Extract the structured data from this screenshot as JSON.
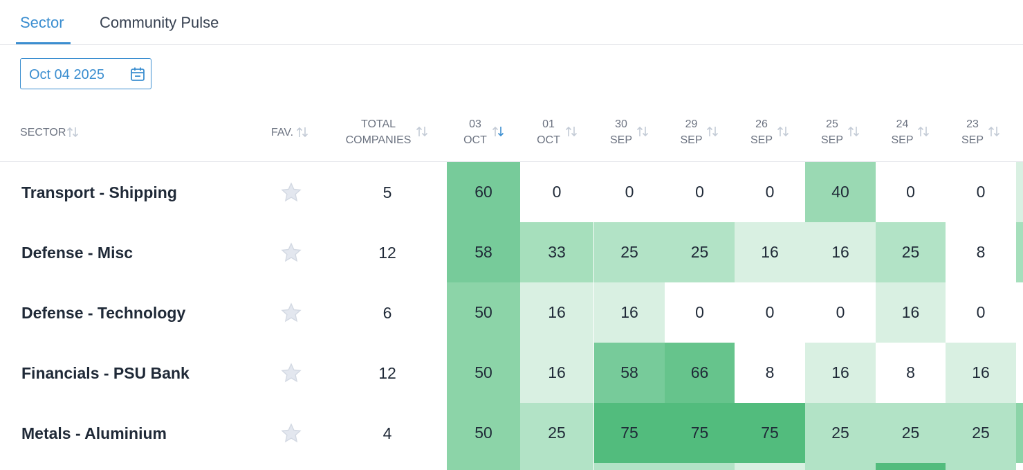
{
  "tabs": [
    {
      "label": "Sector",
      "active": true
    },
    {
      "label": "Community Pulse",
      "active": false
    }
  ],
  "date_picker": {
    "value": "Oct 04 2025",
    "icon": "calendar-icon"
  },
  "columns": {
    "sector": "SECTOR",
    "fav": "FAV.",
    "total": [
      "TOTAL",
      "COMPANIES"
    ],
    "dates": [
      {
        "day": "03",
        "month": "OCT",
        "sorted": true
      },
      {
        "day": "01",
        "month": "OCT",
        "sorted": false
      },
      {
        "day": "30",
        "month": "SEP",
        "sorted": false
      },
      {
        "day": "29",
        "month": "SEP",
        "sorted": false
      },
      {
        "day": "26",
        "month": "SEP",
        "sorted": false
      },
      {
        "day": "25",
        "month": "SEP",
        "sorted": false
      },
      {
        "day": "24",
        "month": "SEP",
        "sorted": false
      },
      {
        "day": "23",
        "month": "SEP",
        "sorted": false
      }
    ]
  },
  "rows": [
    {
      "sector": "Transport - Shipping",
      "total": "5",
      "values": [
        60,
        0,
        0,
        0,
        0,
        40,
        0,
        0
      ],
      "edge_color": "#d9f0e2"
    },
    {
      "sector": "Defense - Misc",
      "total": "12",
      "values": [
        58,
        33,
        25,
        25,
        16,
        16,
        25,
        8
      ],
      "edge_color": "#a6dfbc"
    },
    {
      "sector": "Defense - Technology",
      "total": "6",
      "values": [
        50,
        16,
        16,
        0,
        0,
        0,
        16,
        0
      ],
      "edge_color": "#ffffff"
    },
    {
      "sector": "Financials - PSU Bank",
      "total": "12",
      "values": [
        50,
        16,
        58,
        66,
        8,
        16,
        8,
        16
      ],
      "edge_color": "#ffffff"
    },
    {
      "sector": "Metals - Aluminium",
      "total": "4",
      "values": [
        50,
        25,
        75,
        75,
        75,
        25,
        25,
        25
      ],
      "edge_color": "#8cd4a8"
    }
  ],
  "partial_row_colors": [
    "#8cd4a8",
    "#b2e3c6",
    "#b2e3c6",
    "#b2e3c6",
    "#d9f0e2",
    "#b2e3c6",
    "#52bc7d",
    "#b2e3c6"
  ],
  "colors": {
    "accent": "#3b8ed0",
    "heat_75": "#52bc7d",
    "heat_66": "#66c48c",
    "heat_58": "#77cb9a",
    "heat_50": "#8cd4a8",
    "heat_40": "#9ad9b3",
    "heat_33": "#a6dfbc",
    "heat_25": "#b2e3c6",
    "heat_16": "#d9f0e2",
    "heat_8": "#ffffff",
    "heat_0": "#ffffff"
  }
}
